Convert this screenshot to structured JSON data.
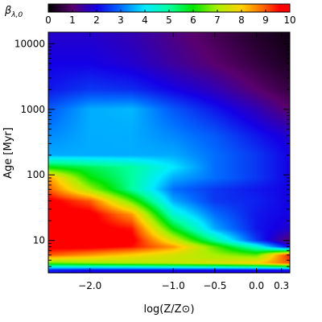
{
  "chart_data": {
    "type": "heatmap",
    "title": "",
    "xlabel": "log(Z/Z⊙)",
    "ylabel": "Age [Myr]",
    "x_scale": "linear",
    "y_scale": "log",
    "xlim": [
      -2.5,
      0.4
    ],
    "ylim": [
      3.2,
      15000
    ],
    "x_ticks": [
      {
        "value": -2.0,
        "label": "−2.0"
      },
      {
        "value": -1.0,
        "label": "−1.0"
      },
      {
        "value": -0.5,
        "label": "−0.5"
      },
      {
        "value": 0.0,
        "label": "0.0"
      },
      {
        "value": 0.3,
        "label": "0.3"
      }
    ],
    "y_ticks": [
      {
        "value": 10,
        "label": "10"
      },
      {
        "value": 100,
        "label": "100"
      },
      {
        "value": 1000,
        "label": "1000"
      },
      {
        "value": 10000,
        "label": "10000"
      }
    ],
    "colorbar": {
      "title": "βλ,0",
      "title_main": "β",
      "title_sub": "λ,0",
      "range": [
        0,
        10
      ],
      "ticks": [
        "0",
        "1",
        "2",
        "3",
        "4",
        "5",
        "6",
        "7",
        "8",
        "9",
        "10"
      ],
      "placement": "top",
      "colormap": "rainbow (black-purple-blue-cyan-green-yellow-orange-red)"
    },
    "z_grid": {
      "x": [
        -2.5,
        -2.0,
        -1.5,
        -1.0,
        -0.5,
        0.0,
        0.4
      ],
      "y": [
        3.5,
        4.5,
        6.0,
        8.0,
        10,
        15,
        25,
        40,
        60,
        90,
        130,
        200,
        400,
        1000,
        2000,
        5000,
        12000
      ],
      "z": [
        [
          2.2,
          2.0,
          2.0,
          2.0,
          2.0,
          2.0,
          2.0
        ],
        [
          6.5,
          6.8,
          7.0,
          7.2,
          7.5,
          8.0,
          9.0
        ],
        [
          9.0,
          8.5,
          8.0,
          7.5,
          7.0,
          6.5,
          9.5
        ],
        [
          9.8,
          9.8,
          9.5,
          8.5,
          6.5,
          4.5,
          2.0
        ],
        [
          9.8,
          9.8,
          9.8,
          7.5,
          5.0,
          2.5,
          1.0
        ],
        [
          9.8,
          9.8,
          9.5,
          6.0,
          3.5,
          2.2,
          1.8
        ],
        [
          9.8,
          9.8,
          8.5,
          4.5,
          3.0,
          2.2,
          2.0
        ],
        [
          9.8,
          9.0,
          6.5,
          3.5,
          2.5,
          2.3,
          2.0
        ],
        [
          9.0,
          7.0,
          5.0,
          3.0,
          2.5,
          2.2,
          2.0
        ],
        [
          8.5,
          6.0,
          5.0,
          3.5,
          3.0,
          2.5,
          2.0
        ],
        [
          6.0,
          5.5,
          5.0,
          4.0,
          3.0,
          2.5,
          2.0
        ],
        [
          3.5,
          3.5,
          3.5,
          3.5,
          3.0,
          2.5,
          2.0
        ],
        [
          3.2,
          3.5,
          3.5,
          3.2,
          2.8,
          2.2,
          1.8
        ],
        [
          2.8,
          3.5,
          3.6,
          2.8,
          2.2,
          1.6,
          1.0
        ],
        [
          2.2,
          2.5,
          2.4,
          2.0,
          1.6,
          1.0,
          0.6
        ],
        [
          2.0,
          2.0,
          1.8,
          1.4,
          1.0,
          0.6,
          0.3
        ],
        [
          1.8,
          1.8,
          1.6,
          1.2,
          0.8,
          0.4,
          0.2
        ]
      ]
    }
  }
}
